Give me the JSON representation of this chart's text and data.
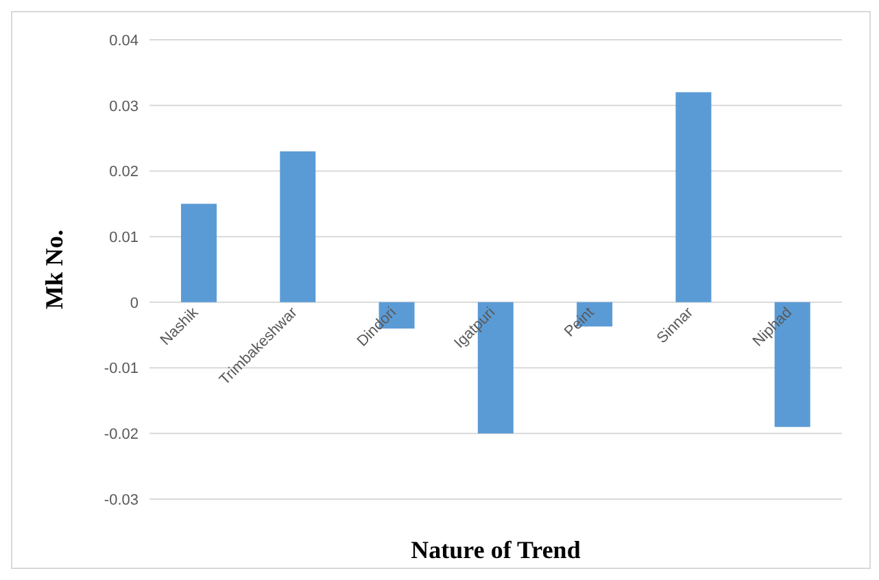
{
  "chart_data": {
    "type": "bar",
    "xlabel": "Nature of Trend",
    "ylabel": "Mk No.",
    "categories": [
      "Nashik",
      "Trimbakeshwar",
      "Dindori",
      "Igatpuri",
      "Peint",
      "Sinnar",
      "Niphad"
    ],
    "values": [
      0.015,
      0.023,
      -0.004,
      -0.02,
      -0.0037,
      0.032,
      -0.019
    ],
    "color": "#5b9bd5",
    "ylim": [
      -0.03,
      0.04
    ],
    "yticks": [
      -0.03,
      -0.02,
      -0.01,
      0,
      0.01,
      0.02,
      0.03,
      0.04
    ],
    "grid": "y"
  }
}
